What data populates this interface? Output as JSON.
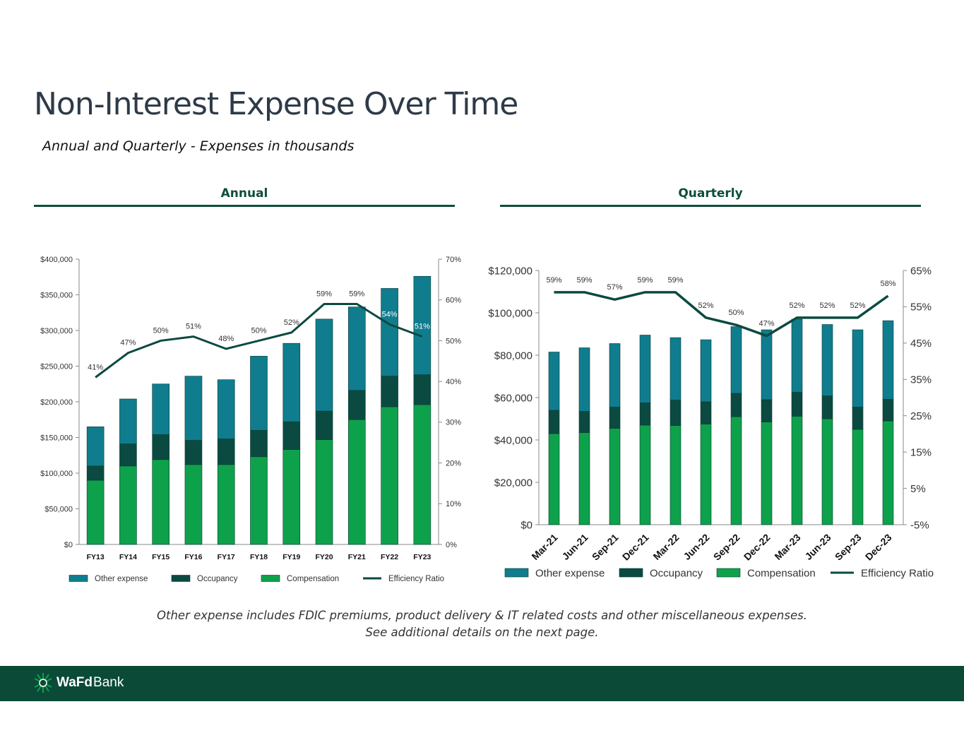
{
  "page": {
    "title": "Non-Interest Expense Over Time",
    "subtitle": "Annual and Quarterly - Expenses in thousands",
    "footnote_line1": "Other expense includes FDIC premiums, product delivery & IT related costs and other miscellaneous expenses.",
    "footnote_line2": "See additional details on the next page.",
    "logo_text_bold": "WaFd",
    "logo_text_regular": "Bank"
  },
  "sections": {
    "annual": "Annual",
    "quarterly": "Quarterly"
  },
  "colors": {
    "other_expense": "#0f7d8e",
    "occupancy": "#0b4a40",
    "compensation": "#0ea14b",
    "efficiency_ratio": "#0b4a40",
    "brand_dark": "#0b4a37",
    "heading": "#0e4d3c"
  },
  "chart_data": [
    {
      "type": "bar",
      "stacked": true,
      "categories": [
        "FY13",
        "FY14",
        "FY15",
        "FY16",
        "FY17",
        "FY18",
        "FY19",
        "FY20",
        "FY21",
        "FY22",
        "FY23"
      ],
      "series": [
        {
          "name": "Compensation",
          "values": [
            90000,
            110000,
            119000,
            112000,
            112000,
            123000,
            133000,
            147000,
            175000,
            193000,
            196000
          ]
        },
        {
          "name": "Occupancy",
          "values": [
            20000,
            31000,
            35000,
            34000,
            36000,
            37000,
            39000,
            40000,
            41000,
            43000,
            42000
          ]
        },
        {
          "name": "Other expense",
          "values": [
            55000,
            63000,
            71000,
            90000,
            83000,
            104000,
            110000,
            129000,
            117000,
            123000,
            138000
          ]
        }
      ],
      "line_series": {
        "name": "Efficiency Ratio",
        "values": [
          41,
          47,
          50,
          51,
          48,
          50,
          52,
          59,
          59,
          54,
          51
        ],
        "labels": [
          "41%",
          "47%",
          "50%",
          "51%",
          "48%",
          "50%",
          "52%",
          "59%",
          "59%",
          "54%",
          "51%"
        ]
      },
      "ylim": [
        0,
        400000
      ],
      "y_ticks": [
        "$0",
        "$50,000",
        "$100,000",
        "$150,000",
        "$200,000",
        "$250,000",
        "$300,000",
        "$350,000",
        "$400,000"
      ],
      "y2lim": [
        0,
        70
      ],
      "y2_ticks": [
        "0%",
        "10%",
        "20%",
        "30%",
        "40%",
        "50%",
        "60%",
        "70%"
      ],
      "legend": [
        "Other expense",
        "Occupancy",
        "Compensation",
        "Efficiency Ratio"
      ],
      "legend_position": "bottom",
      "grid": false
    },
    {
      "type": "bar",
      "stacked": true,
      "categories": [
        "Mar-21",
        "Jun-21",
        "Sep-21",
        "Dec-21",
        "Mar-22",
        "Jun-22",
        "Sep-22",
        "Dec-22",
        "Mar-23",
        "Jun-23",
        "Sep-23",
        "Dec-23"
      ],
      "series": [
        {
          "name": "Compensation",
          "values": [
            43000,
            43500,
            45500,
            47000,
            46800,
            47500,
            51000,
            48500,
            51200,
            50000,
            45000,
            49000
          ]
        },
        {
          "name": "Occupancy",
          "values": [
            11000,
            10000,
            10000,
            10500,
            12000,
            10500,
            11000,
            10500,
            11300,
            10800,
            10500,
            10200
          ]
        },
        {
          "name": "Other expense",
          "values": [
            27500,
            30000,
            30000,
            32000,
            29500,
            29300,
            31500,
            33000,
            34500,
            33700,
            36500,
            37100
          ]
        }
      ],
      "line_series": {
        "name": "Efficiency Ratio",
        "values": [
          59,
          59,
          57,
          59,
          59,
          52,
          50,
          47,
          52,
          52,
          52,
          58
        ],
        "labels": [
          "59%",
          "59%",
          "57%",
          "59%",
          "59%",
          "52%",
          "50%",
          "47%",
          "52%",
          "52%",
          "52%",
          "58%"
        ]
      },
      "ylim": [
        0,
        120000
      ],
      "y_ticks": [
        "$0",
        "$20,000",
        "$40,000",
        "$60,000",
        "$80,000",
        "$100,000",
        "$120,000"
      ],
      "y2lim": [
        -5,
        65
      ],
      "y2_ticks": [
        "-5%",
        "5%",
        "15%",
        "25%",
        "35%",
        "45%",
        "55%",
        "65%"
      ],
      "legend": [
        "Other expense",
        "Occupancy",
        "Compensation",
        "Efficiency Ratio"
      ],
      "legend_position": "bottom",
      "grid": false
    }
  ]
}
